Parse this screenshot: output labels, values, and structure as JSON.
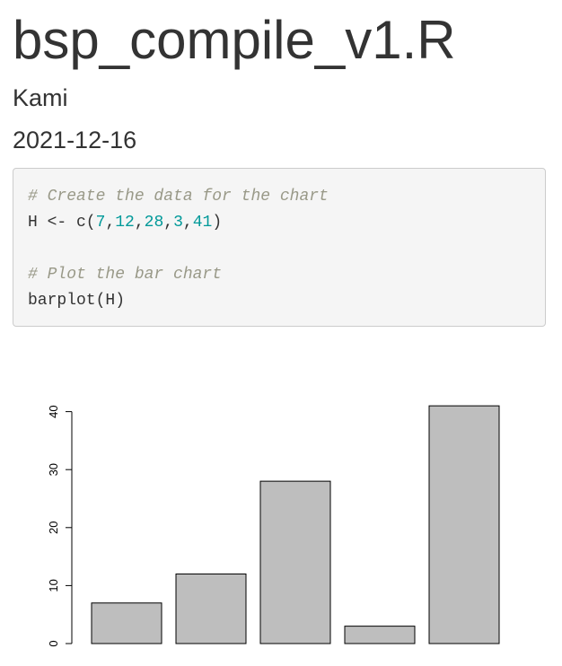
{
  "header": {
    "title": "bsp_compile_v1.R",
    "author": "Kami",
    "date": "2021-12-16"
  },
  "code": {
    "comment1": "# Create the data for the chart",
    "line2_prefix": "H <- c(",
    "numbers": [
      "7",
      "12",
      "28",
      "3",
      "41"
    ],
    "line2_suffix": ")",
    "comment2": "# Plot the bar chart",
    "line5": "barplot(H)"
  },
  "colors": {
    "bar_fill": "#bebebe",
    "comment": "#999988",
    "number": "#009999"
  },
  "chart_data": {
    "type": "bar",
    "categories": [
      "",
      "",
      "",
      "",
      ""
    ],
    "values": [
      7,
      12,
      28,
      3,
      41
    ],
    "yticks": [
      "0",
      "10",
      "20",
      "30",
      "40"
    ],
    "ylim": [
      0,
      41
    ],
    "title": "",
    "xlabel": "",
    "ylabel": "",
    "grid": false,
    "legend": "none"
  }
}
